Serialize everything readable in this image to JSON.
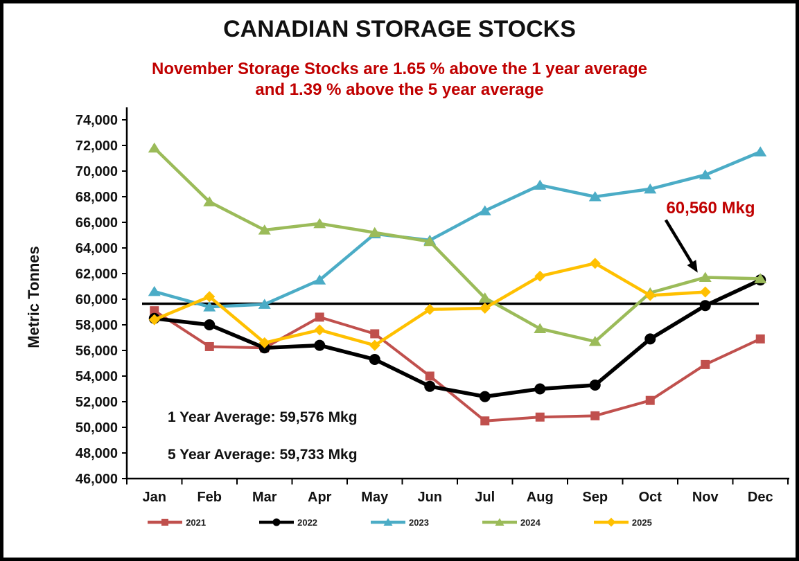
{
  "chart_data": {
    "type": "line",
    "title": "CANADIAN STORAGE STOCKS",
    "subtitle_line1": "November Storage Stocks are 1.65 % above the 1 year average",
    "subtitle_line2": "and 1.39 % above the 5 year average",
    "subtitle_color": "#C00000",
    "ylabel": "Metric Tonnes",
    "ylim": [
      46000,
      74000
    ],
    "ytick_step": 2000,
    "grid": false,
    "legend_position": "bottom",
    "categories": [
      "Jan",
      "Feb",
      "Mar",
      "Apr",
      "May",
      "Jun",
      "Jul",
      "Aug",
      "Sep",
      "Oct",
      "Nov",
      "Dec"
    ],
    "series": [
      {
        "name": "2021",
        "color": "#C0504D",
        "marker": "square",
        "line_width": 4,
        "values": [
          59100,
          56300,
          56200,
          58600,
          57300,
          54000,
          50500,
          50800,
          50900,
          52100,
          54900,
          56900
        ]
      },
      {
        "name": "2022",
        "color": "#000000",
        "marker": "circle",
        "line_width": 5.5,
        "values": [
          58500,
          58000,
          56200,
          56400,
          55300,
          53200,
          52400,
          53000,
          53300,
          56900,
          59500,
          61500
        ]
      },
      {
        "name": "2023",
        "color": "#4BACC6",
        "marker": "triangle",
        "line_width": 4.5,
        "values": [
          60600,
          59400,
          59600,
          61500,
          65100,
          64600,
          66900,
          68900,
          68000,
          68600,
          69700,
          71500
        ]
      },
      {
        "name": "2024",
        "color": "#9BBB59",
        "marker": "triangle",
        "line_width": 4.5,
        "values": [
          71800,
          67600,
          65400,
          65900,
          65200,
          64500,
          60100,
          57700,
          56700,
          60500,
          61700,
          61600
        ]
      },
      {
        "name": "2025",
        "color": "#FFC000",
        "marker": "diamond",
        "line_width": 4.5,
        "values": [
          58400,
          60200,
          56600,
          57600,
          56400,
          59200,
          59300,
          61800,
          62800,
          60300,
          60560,
          null
        ]
      }
    ],
    "average_line_value": 59650,
    "annotations": {
      "point_label": "60,560 Mkg",
      "point_series": "2025",
      "point_category": "Nov",
      "annotation_color": "#C00000",
      "avg1_text": "1 Year Average: 59,576 Mkg",
      "avg5_text": "5 Year Average: 59,733 Mkg"
    }
  }
}
